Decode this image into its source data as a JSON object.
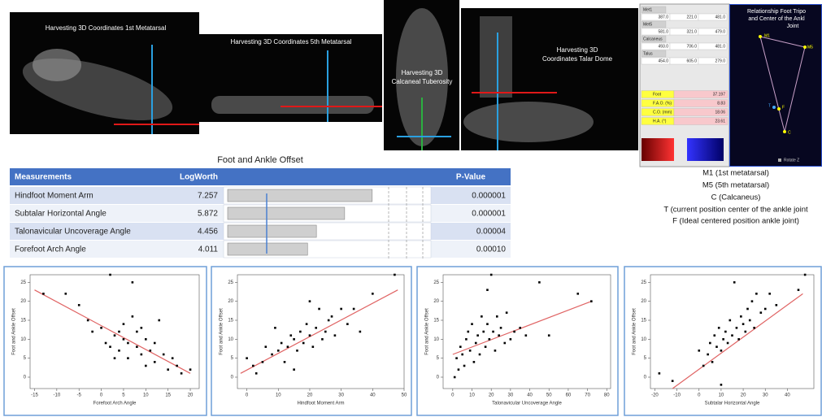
{
  "images": [
    {
      "lines": [
        "Harvesting 3D Coordinates 1st Metatarsal"
      ]
    },
    {
      "lines": [
        "Harvesting 3D Coordinates 5th Metatarsal"
      ]
    },
    {
      "lines": [
        "Harvesting 3D",
        "Calcaneal Tuberosity"
      ]
    },
    {
      "lines": [
        "Harvesting 3D",
        "Coordinates Talar Dome"
      ]
    }
  ],
  "spreadsheet": {
    "groups": [
      {
        "name": "Met1",
        "values": [
          "387.0",
          "221.0",
          "481.0"
        ]
      },
      {
        "name": "Met5",
        "values": [
          "581.0",
          "321.0",
          "479.0"
        ]
      },
      {
        "name": "Calcaneus",
        "values": [
          "493.0",
          "706.0",
          "481.0"
        ]
      },
      {
        "name": "Talus",
        "values": [
          "454.0",
          "605.0",
          "279.0"
        ]
      }
    ],
    "results": [
      {
        "label": "Foot",
        "value": "37.197"
      },
      {
        "label": "F.A.O. (%)",
        "value": "8.83"
      },
      {
        "label": "C.O. (mm)",
        "value": "18.06"
      },
      {
        "label": "H.A. (°)",
        "value": "23.61"
      }
    ]
  },
  "tripod": {
    "title": [
      "Relationship Foot Tripo",
      "and Center of the Ankl",
      "Joint"
    ],
    "points": [
      "M1",
      "M5",
      "C",
      "T",
      "F"
    ],
    "control": "Rotate Z"
  },
  "legend_lines": [
    "M1 (1st metatarsal)",
    "M5 (5th metatarsal)",
    "C (Calcaneus)",
    "T (current position center of the ankle joint",
    "F (Ideal centered position ankle joint)"
  ],
  "table": {
    "title": "Foot and Ankle Offset",
    "header": [
      "Measurements",
      "LogWorth",
      "P-Value"
    ],
    "rows": [
      {
        "measurement": "Hindfoot Moment Arm",
        "logworth": 7.257,
        "p_value": "0.000001"
      },
      {
        "measurement": "Subtalar Horizontal Angle",
        "logworth": 5.872,
        "p_value": "0.000001"
      },
      {
        "measurement": "Talonavicular Uncoverage Angle",
        "logworth": 4.456,
        "p_value": "0.00004"
      },
      {
        "measurement": "Forefoot Arch Angle",
        "logworth": 4.011,
        "p_value": "0.00010"
      }
    ]
  },
  "chart_data": [
    {
      "type": "scatter",
      "x_label": "Forefoot Arch Angle",
      "y_label": "Foot and Ankle Offset",
      "color": "#000000",
      "fit_color": "#e06464",
      "x": [
        -13,
        -8,
        -5,
        -3,
        -2,
        0,
        1,
        2,
        2,
        3,
        4,
        5,
        5,
        6,
        6,
        7,
        7,
        8,
        8,
        9,
        10,
        10,
        11,
        12,
        12,
        13,
        14,
        15,
        16,
        17,
        18,
        20,
        3,
        4,
        9
      ],
      "values": [
        22,
        22,
        19,
        15,
        12,
        13,
        9,
        27,
        8,
        11,
        7,
        10,
        14,
        5,
        9,
        16,
        25,
        8,
        12,
        6,
        10,
        3,
        7,
        9,
        4,
        15,
        6,
        2,
        5,
        3,
        1,
        2,
        5,
        12,
        13
      ],
      "fit": {
        "x": [
          -15,
          20
        ],
        "values": [
          23,
          1
        ]
      },
      "xlim": [
        -16,
        22
      ],
      "ylim": [
        -3,
        27
      ],
      "xticks": [
        -15,
        -10,
        -5,
        0,
        5,
        10,
        15,
        20
      ],
      "yticks": [
        0,
        5,
        10,
        15,
        20,
        25
      ]
    },
    {
      "type": "scatter",
      "x_label": "Hindfoot Moment Arm",
      "y_label": "Foot and Ankle Offset",
      "color": "#000000",
      "fit_color": "#e06464",
      "x": [
        0,
        2,
        3,
        5,
        6,
        8,
        9,
        10,
        11,
        12,
        13,
        14,
        15,
        16,
        17,
        18,
        19,
        20,
        21,
        22,
        23,
        24,
        25,
        26,
        27,
        28,
        30,
        32,
        34,
        36,
        40,
        47,
        15,
        20
      ],
      "values": [
        5,
        3,
        1,
        4,
        8,
        6,
        13,
        7,
        9,
        4,
        8,
        11,
        10,
        7,
        12,
        9,
        14,
        11,
        8,
        13,
        18,
        10,
        12,
        15,
        16,
        11,
        18,
        14,
        18,
        12,
        22,
        27,
        2,
        20
      ],
      "fit": {
        "x": [
          -2,
          48
        ],
        "values": [
          1,
          23
        ]
      },
      "xlim": [
        -3,
        50
      ],
      "ylim": [
        -3,
        27
      ],
      "xticks": [
        0,
        10,
        20,
        30,
        40,
        50
      ],
      "yticks": [
        0,
        5,
        10,
        15,
        20,
        25
      ]
    },
    {
      "type": "scatter",
      "x_label": "Talonavicular Uncoverage Angle",
      "y_label": "Foot and Ankle Offset",
      "color": "#000000",
      "fit_color": "#e06464",
      "x": [
        1,
        2,
        3,
        4,
        5,
        6,
        7,
        8,
        9,
        10,
        11,
        12,
        13,
        14,
        15,
        16,
        17,
        18,
        19,
        20,
        21,
        22,
        23,
        24,
        25,
        27,
        28,
        30,
        32,
        35,
        38,
        45,
        50,
        65,
        72,
        18
      ],
      "values": [
        0,
        5,
        2,
        8,
        6,
        3,
        10,
        12,
        7,
        14,
        4,
        9,
        11,
        6,
        16,
        12,
        8,
        14,
        10,
        27,
        12,
        7,
        16,
        11,
        13,
        9,
        17,
        10,
        12,
        13,
        11,
        25,
        11,
        22,
        20,
        23
      ],
      "fit": {
        "x": [
          0,
          72
        ],
        "values": [
          6,
          20
        ]
      },
      "xlim": [
        -5,
        82
      ],
      "ylim": [
        -3,
        27
      ],
      "xticks": [
        0,
        10,
        20,
        30,
        40,
        50,
        60,
        70,
        80
      ],
      "yticks": [
        0,
        5,
        10,
        15,
        20,
        25
      ]
    },
    {
      "type": "scatter",
      "x_label": "Subtalar Horizontal Angle",
      "y_label": "Foot and Ankle Offset",
      "color": "#000000",
      "fit_color": "#e06464",
      "x": [
        -18,
        -12,
        0,
        2,
        4,
        5,
        6,
        7,
        8,
        9,
        10,
        11,
        12,
        13,
        14,
        15,
        16,
        17,
        18,
        19,
        20,
        21,
        22,
        23,
        24,
        25,
        26,
        28,
        30,
        32,
        35,
        45,
        48,
        10
      ],
      "values": [
        1,
        -1,
        7,
        3,
        6,
        9,
        4,
        11,
        8,
        13,
        7,
        10,
        12,
        9,
        15,
        11,
        25,
        13,
        10,
        16,
        14,
        12,
        18,
        15,
        20,
        13,
        22,
        17,
        18,
        22,
        19,
        23,
        27,
        -2
      ],
      "fit": {
        "x": [
          -12,
          47
        ],
        "values": [
          -3,
          22
        ]
      },
      "xlim": [
        -22,
        52
      ],
      "ylim": [
        -3,
        27
      ],
      "xticks": [
        -20,
        -10,
        0,
        10,
        20,
        30,
        40
      ],
      "yticks": [
        0,
        5,
        10,
        15,
        20,
        25
      ]
    }
  ]
}
